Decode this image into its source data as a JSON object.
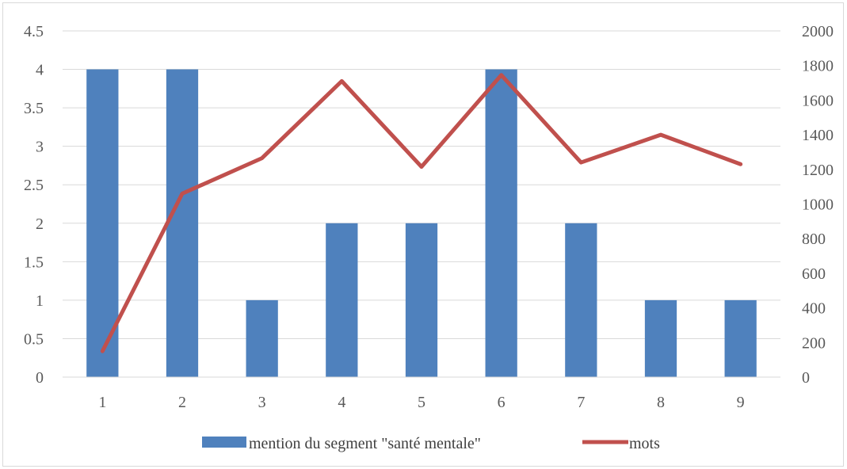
{
  "chart_data": {
    "type": "bar",
    "title": "",
    "categories": [
      "1",
      "2",
      "3",
      "4",
      "5",
      "6",
      "7",
      "8",
      "9"
    ],
    "series": [
      {
        "name": "mention du segment \"santé mentale\"",
        "type": "bar",
        "axis": "left",
        "color": "#4f81bd",
        "values": [
          4,
          4,
          1,
          2,
          2,
          4,
          2,
          1,
          1
        ]
      },
      {
        "name": "mots",
        "type": "line",
        "axis": "right",
        "color": "#c0504d",
        "values": [
          150,
          1060,
          1265,
          1710,
          1215,
          1745,
          1240,
          1400,
          1230
        ]
      }
    ],
    "y_left": {
      "ylim": [
        0,
        4.5
      ],
      "ticks": [
        "0",
        "0.5",
        "1",
        "1.5",
        "2",
        "2.5",
        "3",
        "3.5",
        "4",
        "4.5"
      ]
    },
    "y_right": {
      "ylim": [
        0,
        2000
      ],
      "ticks": [
        "0",
        "200",
        "400",
        "600",
        "800",
        "1000",
        "1200",
        "1400",
        "1600",
        "1800",
        "2000"
      ]
    },
    "grid": true,
    "legend": "bottom"
  }
}
